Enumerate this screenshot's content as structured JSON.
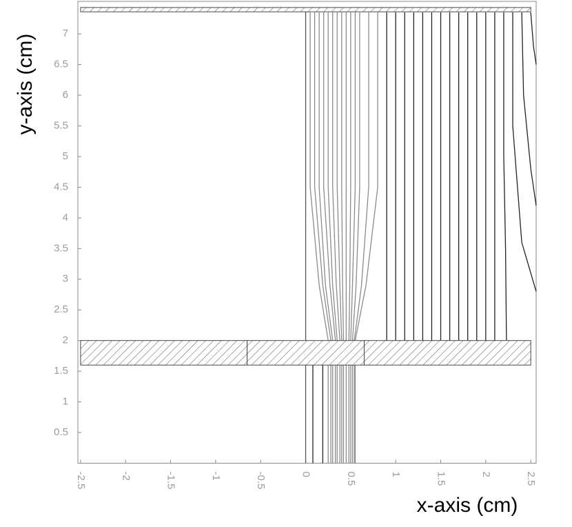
{
  "chart_data": {
    "type": "line",
    "xlabel": "x-axis (cm)",
    "ylabel": "y-axis (cm)",
    "xlim": [
      -2.53,
      2.56
    ],
    "ylim": [
      0,
      7.53
    ],
    "xticks": [
      -2.5,
      -2,
      -1.5,
      -1,
      -0.5,
      0,
      0.5,
      1,
      1.5,
      2,
      2.5
    ],
    "yticks": [
      0.5,
      1,
      1.5,
      2,
      2.5,
      3,
      3.5,
      4,
      4.5,
      5,
      5.5,
      6,
      6.5,
      7
    ],
    "regions": [
      {
        "x": [
          -2.5,
          2.5
        ],
        "y": [
          7.36,
          7.43
        ]
      },
      {
        "x": [
          -2.5,
          -0.65
        ],
        "y": [
          1.6,
          2.0
        ]
      },
      {
        "x": [
          -0.65,
          0.65
        ],
        "y": [
          1.6,
          2.0
        ]
      },
      {
        "x": [
          0.65,
          2.5
        ],
        "y": [
          1.6,
          2.0
        ]
      }
    ],
    "series": [
      {
        "color": "#555555",
        "x": [
          0,
          0
        ],
        "values": [
          0,
          7.43
        ]
      },
      {
        "color": "#8a8a8a",
        "x": [
          0.05,
          0.05,
          0.15,
          0.25,
          0.25
        ],
        "values": [
          7.35,
          4.5,
          2.9,
          2.0,
          0
        ]
      },
      {
        "color": "#8a8a8a",
        "x": [
          0.1,
          0.1,
          0.19,
          0.28,
          0.28
        ],
        "values": [
          7.35,
          4.5,
          2.9,
          2.0,
          0
        ]
      },
      {
        "color": "#8a8a8a",
        "x": [
          0.15,
          0.15,
          0.22,
          0.3,
          0.3
        ],
        "values": [
          7.35,
          4.5,
          2.9,
          2.0,
          0
        ]
      },
      {
        "color": "#8a8a8a",
        "x": [
          0.2,
          0.2,
          0.27,
          0.33,
          0.33
        ],
        "values": [
          7.35,
          4.5,
          2.9,
          2.0,
          0
        ]
      },
      {
        "color": "#8a8a8a",
        "x": [
          0.25,
          0.25,
          0.3,
          0.35,
          0.35
        ],
        "values": [
          7.35,
          4.5,
          2.9,
          2.0,
          0
        ]
      },
      {
        "color": "#8a8a8a",
        "x": [
          0.3,
          0.3,
          0.34,
          0.38,
          0.38
        ],
        "values": [
          7.35,
          4.5,
          2.9,
          2.0,
          0
        ]
      },
      {
        "color": "#8a8a8a",
        "x": [
          0.35,
          0.35,
          0.38,
          0.4,
          0.4
        ],
        "values": [
          7.35,
          4.5,
          2.9,
          2.0,
          0
        ]
      },
      {
        "color": "#8a8a8a",
        "x": [
          0.4,
          0.4,
          0.41,
          0.42,
          0.42
        ],
        "values": [
          7.35,
          4.5,
          2.9,
          2.0,
          0
        ]
      },
      {
        "color": "#8a8a8a",
        "x": [
          0.45,
          0.45,
          0.45,
          0.45,
          0.45
        ],
        "values": [
          7.35,
          4.5,
          2.9,
          2.0,
          0
        ]
      },
      {
        "color": "#8a8a8a",
        "x": [
          0.5,
          0.5,
          0.49,
          0.48,
          0.48
        ],
        "values": [
          7.35,
          4.5,
          2.9,
          2.0,
          0
        ]
      },
      {
        "color": "#8a8a8a",
        "x": [
          0.55,
          0.55,
          0.52,
          0.5,
          0.5
        ],
        "values": [
          7.35,
          4.5,
          2.9,
          2.0,
          0
        ]
      },
      {
        "color": "#8a8a8a",
        "x": [
          0.6,
          0.6,
          0.56,
          0.52,
          0.52
        ],
        "values": [
          7.35,
          4.5,
          2.9,
          2.0,
          0
        ]
      },
      {
        "color": "#8a8a8a",
        "x": [
          0.7,
          0.7,
          0.62,
          0.54,
          0.54
        ],
        "values": [
          7.35,
          4.5,
          2.9,
          2.0,
          0
        ]
      },
      {
        "color": "#8a8a8a",
        "x": [
          0.8,
          0.8,
          0.67,
          0.55,
          0.55
        ],
        "values": [
          7.35,
          4.5,
          2.9,
          2.0,
          0
        ]
      },
      {
        "color": "#222222",
        "x": [
          0.08,
          0.08
        ],
        "values": [
          1.6,
          0
        ]
      },
      {
        "color": "#222222",
        "x": [
          0.19,
          0.19
        ],
        "values": [
          1.6,
          0
        ]
      },
      {
        "color": "#222222",
        "x": [
          0.9,
          0.9
        ],
        "values": [
          7.35,
          2.0
        ]
      },
      {
        "color": "#222222",
        "x": [
          1.0,
          1.0
        ],
        "values": [
          7.35,
          2.0
        ]
      },
      {
        "color": "#222222",
        "x": [
          1.1,
          1.1
        ],
        "values": [
          7.35,
          2.0
        ]
      },
      {
        "color": "#222222",
        "x": [
          1.2,
          1.2
        ],
        "values": [
          7.35,
          2.0
        ]
      },
      {
        "color": "#222222",
        "x": [
          1.3,
          1.3
        ],
        "values": [
          7.35,
          2.0
        ]
      },
      {
        "color": "#222222",
        "x": [
          1.4,
          1.4
        ],
        "values": [
          7.35,
          2.0
        ]
      },
      {
        "color": "#222222",
        "x": [
          1.5,
          1.5
        ],
        "values": [
          7.35,
          2.0
        ]
      },
      {
        "color": "#222222",
        "x": [
          1.6,
          1.6
        ],
        "values": [
          7.35,
          2.0
        ]
      },
      {
        "color": "#222222",
        "x": [
          1.7,
          1.7
        ],
        "values": [
          7.35,
          2.0
        ]
      },
      {
        "color": "#222222",
        "x": [
          1.8,
          1.8
        ],
        "values": [
          7.35,
          2.0
        ]
      },
      {
        "color": "#222222",
        "x": [
          1.9,
          1.9
        ],
        "values": [
          7.35,
          2.0
        ]
      },
      {
        "color": "#222222",
        "x": [
          2.0,
          2.0
        ],
        "values": [
          7.35,
          2.0
        ]
      },
      {
        "color": "#222222",
        "x": [
          2.1,
          2.1
        ],
        "values": [
          7.35,
          2.0
        ]
      },
      {
        "color": "#222222",
        "x": [
          2.2,
          2.2,
          2.22,
          2.23
        ],
        "values": [
          7.35,
          5.0,
          3.5,
          2.0
        ]
      },
      {
        "color": "#222222",
        "x": [
          2.3,
          2.3,
          2.4,
          2.56
        ],
        "values": [
          7.35,
          5.5,
          3.6,
          2.8
        ]
      },
      {
        "color": "#222222",
        "x": [
          2.4,
          2.42,
          2.5,
          2.56
        ],
        "values": [
          7.35,
          6.0,
          4.8,
          4.2
        ]
      },
      {
        "color": "#222222",
        "x": [
          2.5,
          2.53,
          2.56
        ],
        "values": [
          7.35,
          6.8,
          6.5
        ]
      }
    ]
  }
}
